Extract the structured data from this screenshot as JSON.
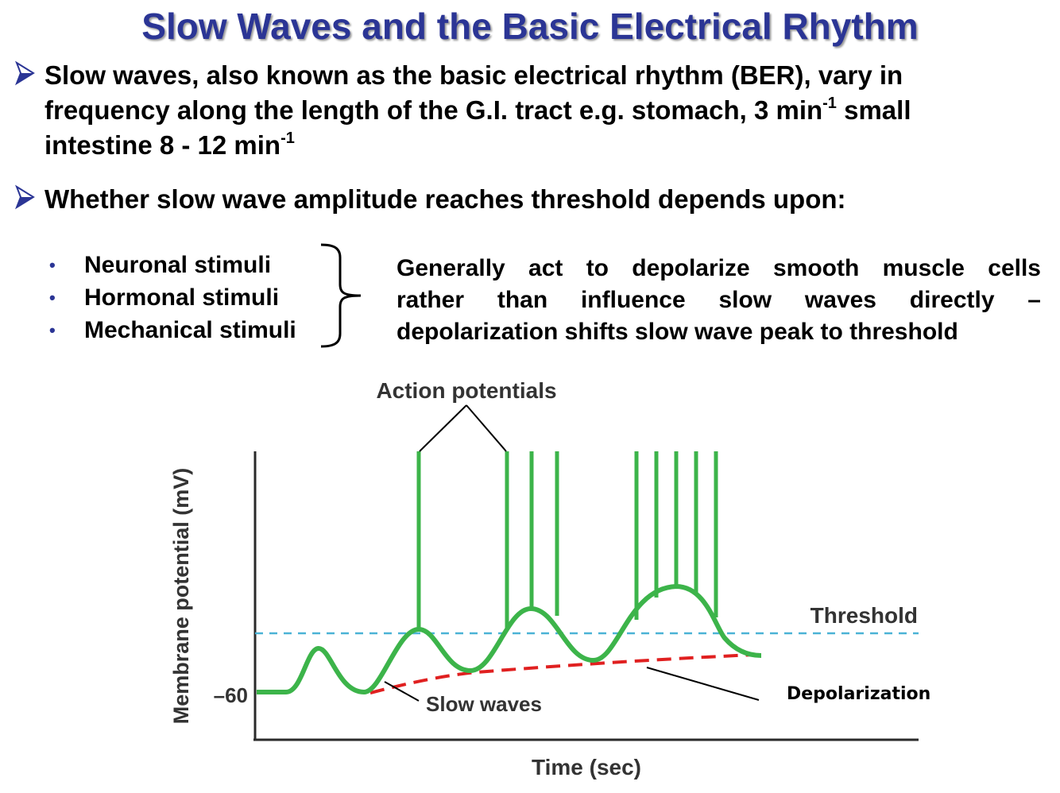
{
  "title": "Slow Waves and the Basic Electrical Rhythm",
  "bullets": [
    {
      "icon": "arrow-bullet-icon",
      "lines": [
        {
          "text": "Slow waves, also known as the basic electrical rhythm (BER), vary in"
        },
        {
          "text": "frequency along the length of the G.I. tract e.g. stomach, 3 min",
          "sup": "-1",
          "after": " small"
        },
        {
          "text": "intestine 8 - 12 min",
          "sup": "-1"
        }
      ]
    },
    {
      "icon": "arrow-bullet-icon",
      "lines": [
        {
          "text": "Whether slow wave amplitude reaches threshold depends upon:"
        }
      ]
    }
  ],
  "stimuli": [
    "Neuronal stimuli",
    "Hormonal stimuli",
    "Mechanical stimuli"
  ],
  "effect_lines": [
    "Generally act to depolarize smooth muscle cells",
    "rather than influence slow waves directly –",
    "depolarization shifts slow wave peak to threshold"
  ],
  "diagram": {
    "action_potentials_label": "Action potentials",
    "threshold_label": "Threshold",
    "slow_waves_label": "Slow waves",
    "depolarization_label": "Depolarization",
    "ylabel": "Membrane potential (mV)",
    "xlabel": "Time (sec)",
    "resting_tick_label": "–60",
    "colors": {
      "trace": "#3cb44a",
      "threshold": "#4bb3d6",
      "depolarization": "#e02020",
      "title": "#2b3595"
    }
  }
}
